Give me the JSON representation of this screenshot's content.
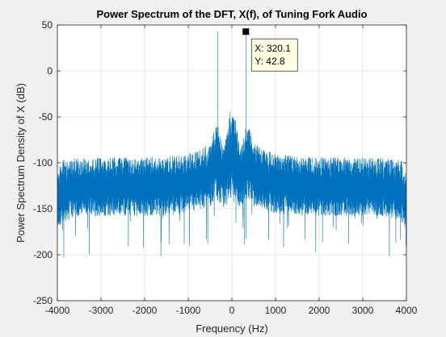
{
  "chart_data": {
    "type": "line",
    "title": "Power Spectrum of the DFT, X(f), of Tuning Fork Audio",
    "xlabel": "Frequency (Hz)",
    "ylabel": "Power Spectrum Density of X (dB)",
    "xlim": [
      -4000,
      4000
    ],
    "ylim": [
      -250,
      50
    ],
    "xticks": [
      -4000,
      -3000,
      -2000,
      -1000,
      0,
      1000,
      2000,
      3000,
      4000
    ],
    "yticks": [
      -250,
      -200,
      -150,
      -100,
      -50,
      0,
      50
    ],
    "xtick_labels": [
      "-4000",
      "-3000",
      "-2000",
      "-1000",
      "0",
      "1000",
      "2000",
      "3000",
      "4000"
    ],
    "ytick_labels": [
      "-250",
      "-200",
      "-150",
      "-100",
      "-50",
      "0",
      "50"
    ],
    "grid": true,
    "series_color": "#0072bd",
    "envelope": {
      "x": [
        -4000,
        -3900,
        -3500,
        -3000,
        -2500,
        -2000,
        -1500,
        -1000,
        -700,
        -500,
        -400,
        -330,
        -300,
        -250,
        -200,
        -150,
        -100,
        -50,
        0,
        50,
        100,
        150,
        200,
        250,
        300,
        330,
        400,
        500,
        700,
        1000,
        1500,
        2000,
        2500,
        3000,
        3500,
        3900,
        4000
      ],
      "upper": [
        -110,
        -97,
        -95,
        -94,
        -94,
        -94,
        -93,
        -90,
        -85,
        -78,
        -62,
        -58,
        -62,
        -70,
        -85,
        -75,
        -55,
        -45,
        -42,
        -45,
        -55,
        -75,
        -85,
        -70,
        -62,
        -58,
        -62,
        -78,
        -85,
        -90,
        -93,
        -94,
        -94,
        -94,
        -95,
        -97,
        -110
      ],
      "lower": [
        -175,
        -165,
        -158,
        -158,
        -158,
        -158,
        -157,
        -155,
        -150,
        -148,
        -140,
        -140,
        -143,
        -146,
        -148,
        -150,
        -145,
        -140,
        -138,
        -140,
        -145,
        -150,
        -148,
        -146,
        -143,
        -140,
        -140,
        -148,
        -150,
        -155,
        -157,
        -158,
        -158,
        -158,
        -158,
        -165,
        -175
      ]
    },
    "peaks": [
      {
        "x": -320.1,
        "y": 42.8
      },
      {
        "x": 320.1,
        "y": 42.8
      }
    ],
    "datatip": {
      "x": 320.1,
      "y": 42.8,
      "line1": "X: 320.1",
      "line2": "Y: 42.8"
    }
  }
}
